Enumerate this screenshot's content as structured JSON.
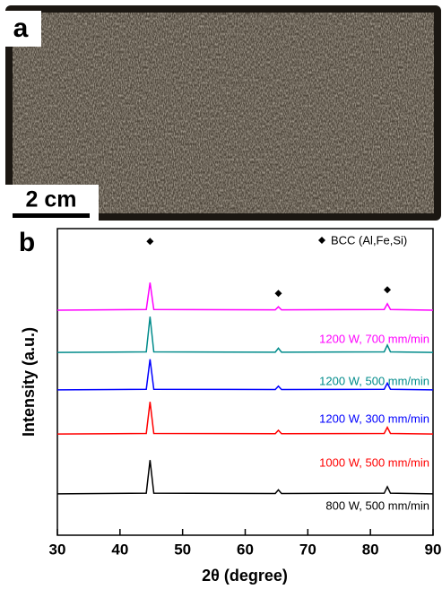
{
  "panels": {
    "a": "a",
    "b": "b"
  },
  "scale_bar": "2 cm",
  "chart_data": {
    "type": "line",
    "xlabel": "2θ (degree)",
    "ylabel": "Intensity (a.u.)",
    "xlim": [
      30,
      90
    ],
    "xticks": [
      30,
      40,
      50,
      60,
      70,
      80,
      90
    ],
    "ylim": [
      0,
      10
    ],
    "x": [
      30,
      44.2,
      44.8,
      45.4,
      64.8,
      65.3,
      65.8,
      82.2,
      82.7,
      83.2,
      90
    ],
    "series": [
      {
        "name": "1200 W, 700 mm/min",
        "color": "#ff00ff",
        "values": [
          7.34,
          7.36,
          8.24,
          7.36,
          7.35,
          7.45,
          7.35,
          7.36,
          7.55,
          7.36,
          7.34
        ]
      },
      {
        "name": "1200 W, 500 mm/min",
        "color": "#008b8b",
        "values": [
          5.96,
          5.98,
          7.13,
          5.98,
          5.97,
          6.1,
          5.97,
          5.98,
          6.2,
          5.98,
          5.96
        ]
      },
      {
        "name": "1200 W, 300 mm/min",
        "color": "#0000ff",
        "values": [
          4.74,
          4.76,
          5.74,
          4.76,
          4.75,
          4.86,
          4.75,
          4.76,
          4.96,
          4.76,
          4.74
        ]
      },
      {
        "name": "1000 W, 500 mm/min",
        "color": "#ff0000",
        "values": [
          3.3,
          3.32,
          4.35,
          3.32,
          3.31,
          3.42,
          3.31,
          3.32,
          3.52,
          3.32,
          3.3
        ]
      },
      {
        "name": "800 W, 500 mm/min",
        "color": "#000000",
        "values": [
          1.35,
          1.37,
          2.45,
          1.37,
          1.36,
          1.48,
          1.36,
          1.37,
          1.58,
          1.37,
          1.35
        ]
      }
    ],
    "peak_markers": [
      44.8,
      65.3,
      82.7
    ],
    "legend_label": "BCC (Al,Fe,Si)"
  }
}
